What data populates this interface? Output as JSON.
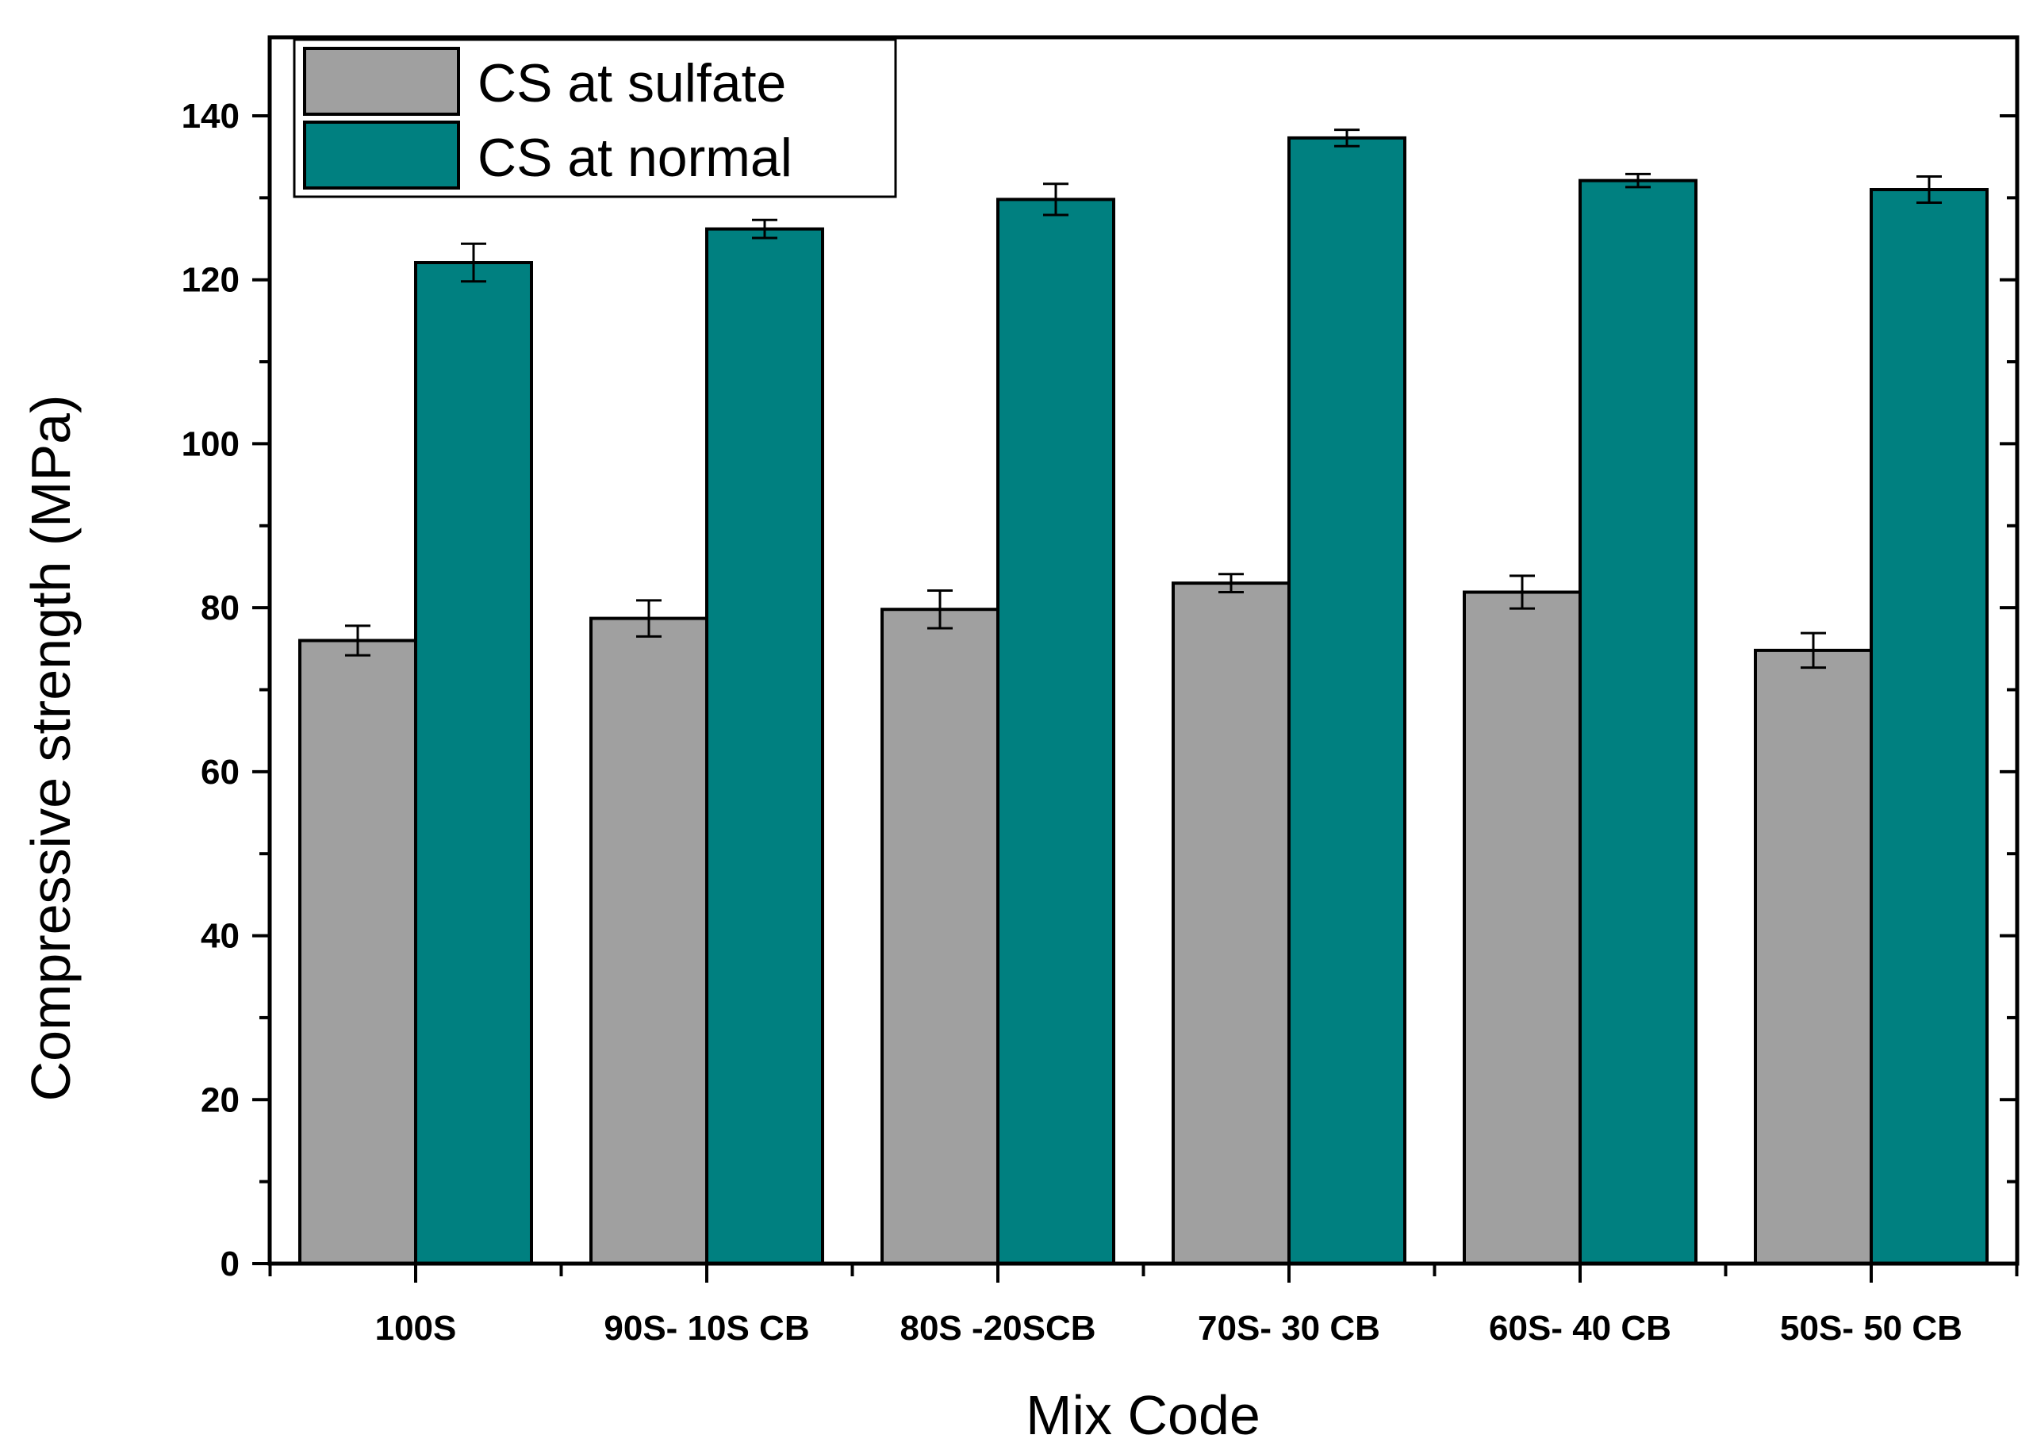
{
  "chart_data": {
    "type": "bar",
    "title": "",
    "xlabel": "Mix Code",
    "ylabel": "Compressive strength (MPa)",
    "ylim": [
      0,
      150
    ],
    "yticks": [
      0,
      20,
      40,
      60,
      80,
      100,
      120,
      140
    ],
    "grid": false,
    "legend_position": "top-left",
    "categories": [
      "100S",
      "90S- 10S CB",
      "80S -20SCB",
      "70S- 30 CB",
      "60S- 40 CB",
      "50S- 50 CB"
    ],
    "series": [
      {
        "name": "CS at sulfate",
        "color": "#a0a0a0",
        "values": [
          76,
          78.7,
          79.8,
          83,
          81.9,
          74.8
        ],
        "errors": [
          1.8,
          2.2,
          2.3,
          1.1,
          2.0,
          2.1
        ]
      },
      {
        "name": "CS at normal",
        "color": "#008080",
        "values": [
          122.1,
          126.2,
          129.8,
          137.3,
          132.1,
          131
        ],
        "errors": [
          2.3,
          1.1,
          1.9,
          1.0,
          0.8,
          1.6
        ]
      }
    ]
  }
}
